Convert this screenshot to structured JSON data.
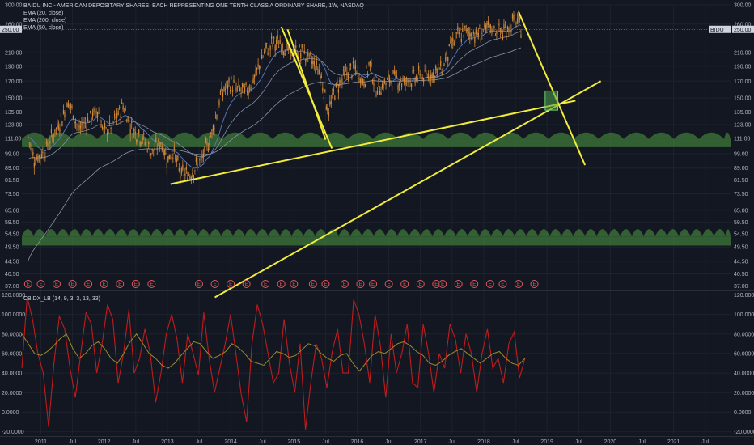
{
  "chart_data": [
    {
      "type": "candlestick",
      "title": "BAIDU INC - AMERICAN DEPOSITARY SHARES, EACH REPRESENTING ONE TENTH CLASS A ORDINARY SHARE, 1W, NASDAQ",
      "indicators": [
        "EMA (20, close)",
        "EMA (200, close)",
        "EMA (50, close)"
      ],
      "y_scale": "log",
      "ylim": [
        36,
        300
      ],
      "y_ticks": [
        "300.00",
        "260.00",
        "250.00",
        "210.00",
        "190.00",
        "170.00",
        "150.00",
        "135.00",
        "123.00",
        "111.00",
        "99.00",
        "89.00",
        "81.50",
        "73.50",
        "65.00",
        "59.50",
        "54.50",
        "49.50",
        "44.50",
        "40.50",
        "37.00"
      ],
      "last_price_label": "250.00",
      "symbol_label": "BIDU",
      "x_ticks": [
        "2011",
        "Jul",
        "2012",
        "Jul",
        "2013",
        "Jul",
        "2014",
        "Jul",
        "2015",
        "Jul",
        "2016",
        "Jul",
        "2017",
        "Jul",
        "2018",
        "Jul",
        "2019",
        "Jul",
        "2020",
        "Jul",
        "2021",
        "Jul"
      ],
      "x_tick_dates": [
        2011.0,
        2011.5,
        2012.0,
        2012.5,
        2013.0,
        2013.5,
        2014.0,
        2014.5,
        2015.0,
        2015.5,
        2016.0,
        2016.5,
        2017.0,
        2017.5,
        2018.0,
        2018.5,
        2019.0,
        2019.5,
        2020.0,
        2020.5,
        2021.0,
        2021.5
      ],
      "xlim": [
        2010.7,
        2021.9
      ],
      "price_path": [
        [
          2010.8,
          112
        ],
        [
          2010.9,
          95
        ],
        [
          2011.05,
          100
        ],
        [
          2011.25,
          120
        ],
        [
          2011.45,
          145
        ],
        [
          2011.6,
          118
        ],
        [
          2011.75,
          128
        ],
        [
          2011.9,
          138
        ],
        [
          2012.0,
          115
        ],
        [
          2012.15,
          125
        ],
        [
          2012.3,
          142
        ],
        [
          2012.45,
          118
        ],
        [
          2012.6,
          112
        ],
        [
          2012.75,
          100
        ],
        [
          2012.9,
          108
        ],
        [
          2013.0,
          95
        ],
        [
          2013.1,
          101
        ],
        [
          2013.2,
          85
        ],
        [
          2013.35,
          85
        ],
        [
          2013.55,
          95
        ],
        [
          2013.7,
          115
        ],
        [
          2013.85,
          155
        ],
        [
          2014.0,
          168
        ],
        [
          2014.1,
          160
        ],
        [
          2014.25,
          158
        ],
        [
          2014.4,
          178
        ],
        [
          2014.55,
          215
        ],
        [
          2014.65,
          225
        ],
        [
          2014.8,
          225
        ],
        [
          2014.95,
          210
        ],
        [
          2015.1,
          212
        ],
        [
          2015.25,
          200
        ],
        [
          2015.4,
          185
        ],
        [
          2015.55,
          135
        ],
        [
          2015.65,
          160
        ],
        [
          2015.8,
          178
        ],
        [
          2015.9,
          185
        ],
        [
          2016.0,
          185
        ],
        [
          2016.1,
          168
        ],
        [
          2016.2,
          195
        ],
        [
          2016.3,
          160
        ],
        [
          2016.45,
          168
        ],
        [
          2016.6,
          175
        ],
        [
          2016.75,
          168
        ],
        [
          2016.9,
          175
        ],
        [
          2017.05,
          175
        ],
        [
          2017.2,
          180
        ],
        [
          2017.35,
          190
        ],
        [
          2017.5,
          225
        ],
        [
          2017.6,
          240
        ],
        [
          2017.75,
          245
        ],
        [
          2017.9,
          240
        ],
        [
          2018.0,
          248
        ],
        [
          2018.15,
          250
        ],
        [
          2018.3,
          245
        ],
        [
          2018.4,
          255
        ],
        [
          2018.5,
          270
        ],
        [
          2018.6,
          250
        ]
      ],
      "earnings_markers": [
        2010.8,
        2011.0,
        2011.25,
        2011.5,
        2011.75,
        2012.0,
        2012.25,
        2012.5,
        2012.75,
        2013.5,
        2013.75,
        2014.0,
        2014.25,
        2014.55,
        2014.8,
        2015.0,
        2015.3,
        2015.5,
        2015.8,
        2016.05,
        2016.25,
        2016.5,
        2016.75,
        2017.0,
        2017.25,
        2017.35,
        2017.6,
        2017.85,
        2018.1,
        2018.3,
        2018.55,
        2018.8
      ],
      "earnings_label": "E",
      "support_bands": [
        {
          "low": 104,
          "high": 116
        },
        {
          "low": 50,
          "high": 56.5
        }
      ],
      "trendlines": [
        {
          "from": [
            2013.05,
            79
          ],
          "to": [
            2019.45,
            147
          ]
        },
        {
          "from": [
            2013.75,
            34
          ],
          "to": [
            2019.85,
            170
          ]
        },
        {
          "from": [
            2014.8,
            255
          ],
          "to": [
            2015.6,
            103
          ]
        },
        {
          "from": [
            2018.55,
            285
          ],
          "to": [
            2019.6,
            91
          ]
        },
        {
          "from": [
            2014.9,
            250
          ],
          "to": [
            2015.5,
            110
          ]
        }
      ],
      "highlight_box": {
        "x": [
          2018.97,
          2019.17
        ],
        "y": [
          137,
          158
        ]
      },
      "colors": {
        "candle": "#d08a3a",
        "ema20": "#5b7bbf",
        "ema50": "#7f8ea8",
        "ema200": "#8a94a8",
        "trend": "#f2ec3a",
        "band": "#3f7a3a",
        "box": "#4aa04a"
      }
    },
    {
      "type": "line",
      "title": "CBIDX_LB (14, 9, 3, 3, 13, 33)",
      "ylim": [
        -22,
        122
      ],
      "y_ticks": [
        "120.0000",
        "100.0000",
        "80.0000",
        "60.0000",
        "40.0000",
        "20.0000",
        "0.0000",
        "-20.0000"
      ],
      "y_tick_values": [
        120,
        100,
        80,
        60,
        40,
        20,
        0,
        -20
      ],
      "series": [
        {
          "color": "#c01c1c",
          "xlim": [
            2010.7,
            2018.65
          ],
          "values": [
            45,
            118,
            95,
            60,
            40,
            -15,
            50,
            98,
            85,
            45,
            15,
            60,
            102,
            90,
            40,
            70,
            110,
            95,
            30,
            60,
            105,
            40,
            55,
            85,
            60,
            10,
            40,
            80,
            100,
            75,
            30,
            80,
            60,
            38,
            102,
            55,
            20,
            45,
            70,
            100,
            60,
            18,
            -10,
            70,
            110,
            90,
            60,
            30,
            40,
            95,
            50,
            20,
            70,
            -18,
            30,
            70,
            55,
            25,
            62,
            85,
            40,
            40,
            115,
            100,
            70,
            30,
            100,
            68,
            15,
            80,
            40,
            60,
            90,
            30,
            25,
            90,
            60,
            20,
            60,
            45,
            90,
            75,
            40,
            80,
            60,
            20,
            60,
            85,
            45,
            55,
            30,
            70,
            82,
            35,
            55
          ]
        },
        {
          "color": "#9a8a2a",
          "xlim": [
            2010.7,
            2018.65
          ],
          "values": [
            80,
            70,
            60,
            58,
            62,
            68,
            75,
            80,
            65,
            55,
            60,
            68,
            72,
            65,
            55,
            50,
            60,
            72,
            80,
            70,
            60,
            55,
            48,
            45,
            50,
            58,
            65,
            72,
            70,
            62,
            55,
            58,
            62,
            70,
            66,
            60,
            52,
            50,
            48,
            55,
            62,
            60,
            56,
            58,
            64,
            70,
            68,
            60,
            55,
            52,
            58,
            60,
            50,
            42,
            50,
            58,
            62,
            60,
            65,
            70,
            72,
            68,
            62,
            58,
            50,
            48,
            52,
            58,
            62,
            65,
            60,
            55,
            50,
            55,
            60,
            62,
            55,
            50,
            48,
            55
          ]
        }
      ]
    }
  ]
}
